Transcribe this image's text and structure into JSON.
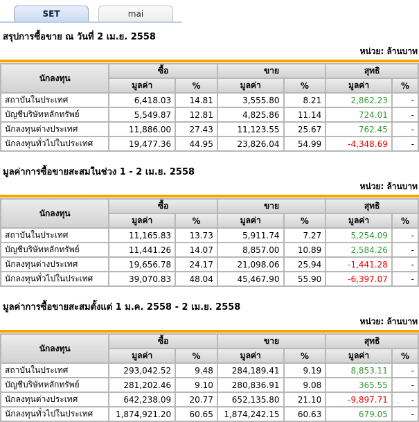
{
  "tabs": [
    {
      "label": "SET",
      "active": true
    },
    {
      "label": "mai",
      "active": false
    }
  ],
  "unit_label": "หน่วย: ล้านบาท",
  "table_headers": {
    "investor": "นักลงทุน",
    "buy": "ซื้อ",
    "sell": "ขาย",
    "net": "สุทธิ",
    "value": "มูลค่า",
    "pct": "%"
  },
  "colors": {
    "accent_bar": "#F7A400",
    "positive": "#339933",
    "negative": "#EE0000"
  },
  "sections": [
    {
      "title": "สรุปการซื้อขาย ณ วันที่ 2 เม.ย. 2558",
      "rows": [
        {
          "investor": "สถาบันในประเทศ",
          "buy_value": "6,418.03",
          "buy_pct": "14.81",
          "sell_value": "3,555.80",
          "sell_pct": "8.21",
          "net_value": "2,862.23",
          "net_pct": "-"
        },
        {
          "investor": "บัญชีบริษัทหลักทรัพย์",
          "buy_value": "5,549.87",
          "buy_pct": "12.81",
          "sell_value": "4,825.86",
          "sell_pct": "11.14",
          "net_value": "724.01",
          "net_pct": "-"
        },
        {
          "investor": "นักลงทุนต่างประเทศ",
          "buy_value": "11,886.00",
          "buy_pct": "27.43",
          "sell_value": "11,123.55",
          "sell_pct": "25.67",
          "net_value": "762.45",
          "net_pct": "-"
        },
        {
          "investor": "นักลงทุนทั่วไปในประเทศ",
          "buy_value": "19,477.36",
          "buy_pct": "44.95",
          "sell_value": "23,826.04",
          "sell_pct": "54.99",
          "net_value": "-4,348.69",
          "net_pct": "-"
        }
      ]
    },
    {
      "title": "มูลค่าการซื้อขายสะสมในช่วง 1 - 2 เม.ย. 2558",
      "rows": [
        {
          "investor": "สถาบันในประเทศ",
          "buy_value": "11,165.83",
          "buy_pct": "13.73",
          "sell_value": "5,911.74",
          "sell_pct": "7.27",
          "net_value": "5,254.09",
          "net_pct": "-"
        },
        {
          "investor": "บัญชีบริษัทหลักทรัพย์",
          "buy_value": "11,441.26",
          "buy_pct": "14.07",
          "sell_value": "8,857.00",
          "sell_pct": "10.89",
          "net_value": "2,584.26",
          "net_pct": "-"
        },
        {
          "investor": "นักลงทุนต่างประเทศ",
          "buy_value": "19,656.78",
          "buy_pct": "24.17",
          "sell_value": "21,098.06",
          "sell_pct": "25.94",
          "net_value": "-1,441.28",
          "net_pct": "-"
        },
        {
          "investor": "นักลงทุนทั่วไปในประเทศ",
          "buy_value": "39,070.83",
          "buy_pct": "48.04",
          "sell_value": "45,467.90",
          "sell_pct": "55.90",
          "net_value": "-6,397.07",
          "net_pct": "-"
        }
      ]
    },
    {
      "title": "มูลค่าการซื้อขายสะสมตั้งแต่ 1 ม.ค. 2558 - 2 เม.ย. 2558",
      "rows": [
        {
          "investor": "สถาบันในประเทศ",
          "buy_value": "293,042.52",
          "buy_pct": "9.48",
          "sell_value": "284,189.41",
          "sell_pct": "9.19",
          "net_value": "8,853.11",
          "net_pct": "-"
        },
        {
          "investor": "บัญชีบริษัทหลักทรัพย์",
          "buy_value": "281,202.46",
          "buy_pct": "9.10",
          "sell_value": "280,836.91",
          "sell_pct": "9.08",
          "net_value": "365.55",
          "net_pct": "-"
        },
        {
          "investor": "นักลงทุนต่างประเทศ",
          "buy_value": "642,238.09",
          "buy_pct": "20.77",
          "sell_value": "652,135.80",
          "sell_pct": "21.10",
          "net_value": "-9,897.71",
          "net_pct": "-"
        },
        {
          "investor": "นักลงทุนทั่วไปในประเทศ",
          "buy_value": "1,874,921.20",
          "buy_pct": "60.65",
          "sell_value": "1,874,242.15",
          "sell_pct": "60.63",
          "net_value": "679.05",
          "net_pct": "-"
        }
      ]
    }
  ]
}
